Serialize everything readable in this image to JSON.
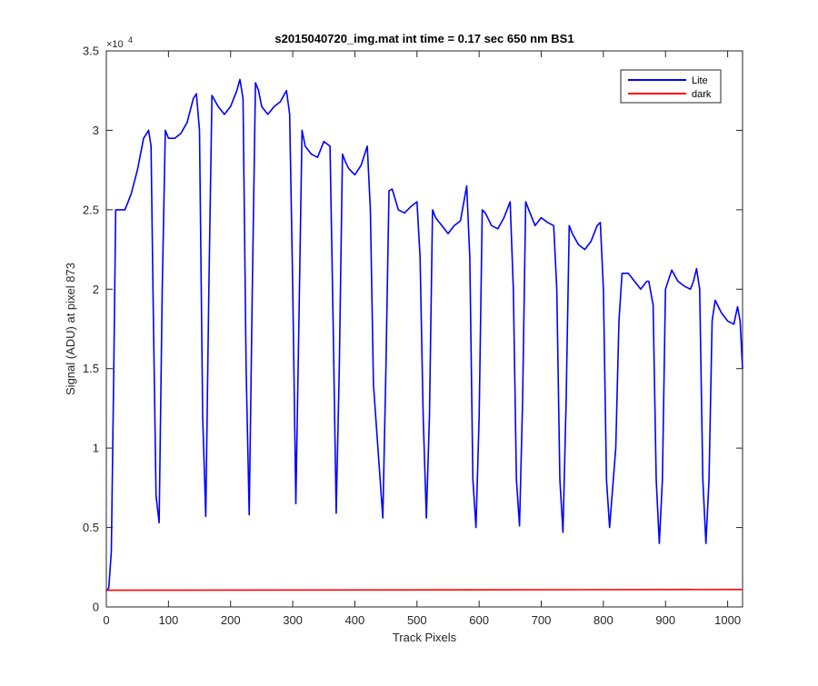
{
  "chart_data": {
    "type": "line",
    "title": "s2015040720_img.mat int time = 0.17 sec  650 nm BS1",
    "xlabel": "Track Pixels",
    "ylabel": "Signal (ADU) at pixel 873",
    "y_exponent_label": "×10",
    "y_exponent_power": "4",
    "xlim": [
      0,
      1024
    ],
    "ylim": [
      0,
      35000
    ],
    "x_ticks": [
      0,
      100,
      200,
      300,
      400,
      500,
      600,
      700,
      800,
      900,
      1000
    ],
    "x_tick_labels": [
      "0",
      "100",
      "200",
      "300",
      "400",
      "500",
      "600",
      "700",
      "800",
      "900",
      "1000"
    ],
    "y_ticks": [
      0,
      5000,
      10000,
      15000,
      20000,
      25000,
      30000,
      35000
    ],
    "y_tick_labels": [
      "0",
      "0.5",
      "1",
      "1.5",
      "2",
      "2.5",
      "3",
      "3.5"
    ],
    "grid": false,
    "legend_position": "top-right",
    "series": [
      {
        "name": "Lite",
        "color": "#0000ff",
        "x": [
          0,
          4,
          8,
          12,
          15,
          20,
          30,
          40,
          50,
          60,
          68,
          72,
          75,
          80,
          85,
          90,
          95,
          100,
          110,
          120,
          130,
          140,
          145,
          150,
          155,
          160,
          165,
          170,
          180,
          190,
          200,
          210,
          215,
          220,
          225,
          230,
          235,
          240,
          245,
          250,
          260,
          270,
          280,
          290,
          295,
          300,
          305,
          310,
          315,
          320,
          330,
          340,
          350,
          360,
          365,
          370,
          375,
          380,
          385,
          390,
          400,
          410,
          420,
          425,
          430,
          445,
          450,
          455,
          460,
          470,
          480,
          490,
          500,
          505,
          510,
          515,
          520,
          525,
          530,
          540,
          550,
          560,
          570,
          580,
          585,
          590,
          595,
          600,
          605,
          610,
          620,
          630,
          640,
          650,
          655,
          660,
          665,
          670,
          675,
          680,
          690,
          700,
          710,
          720,
          725,
          730,
          735,
          740,
          745,
          750,
          760,
          770,
          780,
          790,
          795,
          800,
          805,
          810,
          820,
          825,
          830,
          840,
          850,
          860,
          870,
          873,
          880,
          885,
          890,
          895,
          900,
          910,
          920,
          930,
          940,
          945,
          950,
          955,
          960,
          965,
          970,
          975,
          980,
          990,
          1000,
          1010,
          1016,
          1020,
          1024
        ],
        "y": [
          1000,
          1200,
          3500,
          15000,
          25000,
          25000,
          25000,
          26000,
          27500,
          29500,
          30000,
          29000,
          20000,
          7000,
          5300,
          20000,
          30000,
          29500,
          29500,
          29800,
          30500,
          32000,
          32300,
          30000,
          12000,
          5700,
          20000,
          32200,
          31500,
          31000,
          31500,
          32500,
          33200,
          32000,
          15000,
          5800,
          20000,
          33000,
          32500,
          31500,
          31000,
          31500,
          31800,
          32500,
          31000,
          20000,
          6500,
          18000,
          30000,
          29000,
          28500,
          28300,
          29300,
          29000,
          18000,
          5900,
          15000,
          28500,
          28000,
          27600,
          27200,
          27800,
          29000,
          25000,
          14000,
          5600,
          15000,
          26200,
          26300,
          25000,
          24800,
          25200,
          25500,
          22000,
          12000,
          5600,
          12000,
          25000,
          24500,
          24000,
          23500,
          24000,
          24300,
          26500,
          22000,
          8000,
          5000,
          12000,
          25000,
          24800,
          24000,
          23800,
          24500,
          25500,
          20000,
          8000,
          5100,
          13000,
          25500,
          25000,
          24000,
          24500,
          24200,
          24000,
          20000,
          8000,
          4700,
          13000,
          24000,
          23500,
          22800,
          22500,
          23000,
          24000,
          24200,
          20000,
          8000,
          5000,
          10000,
          18000,
          21000,
          21000,
          20500,
          20000,
          20500,
          20500,
          19000,
          8000,
          4000,
          8000,
          20000,
          21200,
          20500,
          20200,
          20000,
          20500,
          21300,
          20000,
          8000,
          4000,
          8000,
          18000,
          19300,
          18500,
          18000,
          17800,
          18900,
          18000,
          15000
        ]
      },
      {
        "name": "dark",
        "color": "#ff0000",
        "x": [
          0,
          1024
        ],
        "y": [
          1050,
          1100
        ]
      }
    ]
  }
}
